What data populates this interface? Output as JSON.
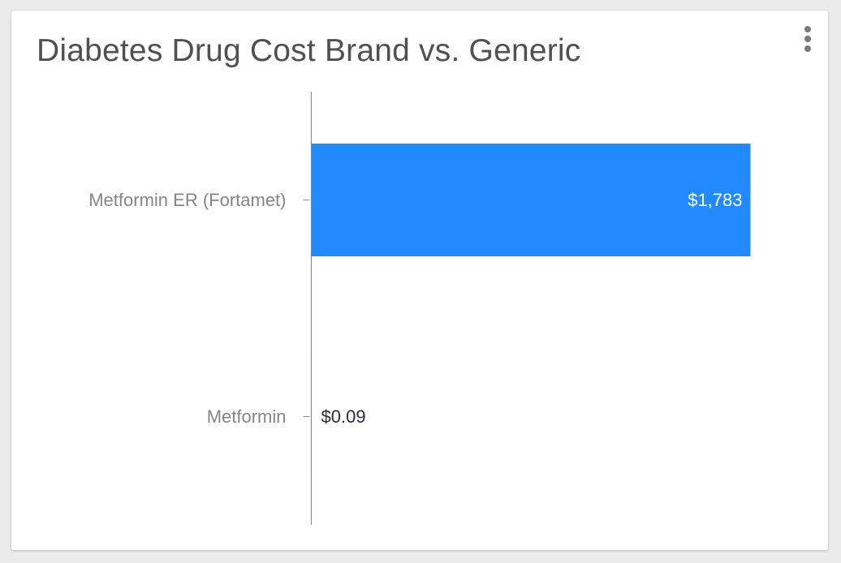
{
  "card": {
    "title": "Diabetes Drug Cost Brand vs. Generic",
    "menu_icon": "more-vertical-icon"
  },
  "chart_data": {
    "type": "bar",
    "orientation": "horizontal",
    "title": "Diabetes Drug Cost Brand vs. Generic",
    "categories": [
      "Metformin ER (Fortamet)",
      "Metformin"
    ],
    "values": [
      1783,
      0.09
    ],
    "value_labels": [
      "$1,783",
      "$0.09"
    ],
    "xlim": [
      0,
      1783
    ],
    "grid": false,
    "legend": "none",
    "colors": {
      "bar": "#2389ff",
      "axis": "#8c8c8c",
      "label_inside": "#ffffff",
      "label_outside": "#2b2b3a"
    }
  }
}
